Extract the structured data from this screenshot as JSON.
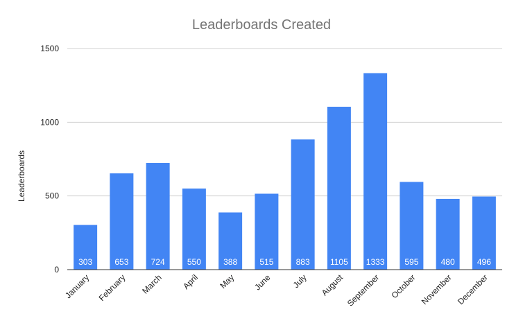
{
  "chart_data": {
    "type": "bar",
    "title": "Leaderboards Created",
    "xlabel": "",
    "ylabel": "Leaderboards",
    "categories": [
      "January",
      "February",
      "March",
      "April",
      "May",
      "June",
      "July",
      "August",
      "September",
      "October",
      "November",
      "December"
    ],
    "values": [
      303,
      653,
      724,
      550,
      388,
      515,
      883,
      1105,
      1333,
      595,
      480,
      496
    ],
    "ylim": [
      0,
      1500
    ],
    "yticks": [
      "0",
      "500",
      "1000",
      "1500"
    ],
    "grid": true,
    "legend": "none",
    "bar_color": "#4285f4",
    "data_labels": true
  }
}
